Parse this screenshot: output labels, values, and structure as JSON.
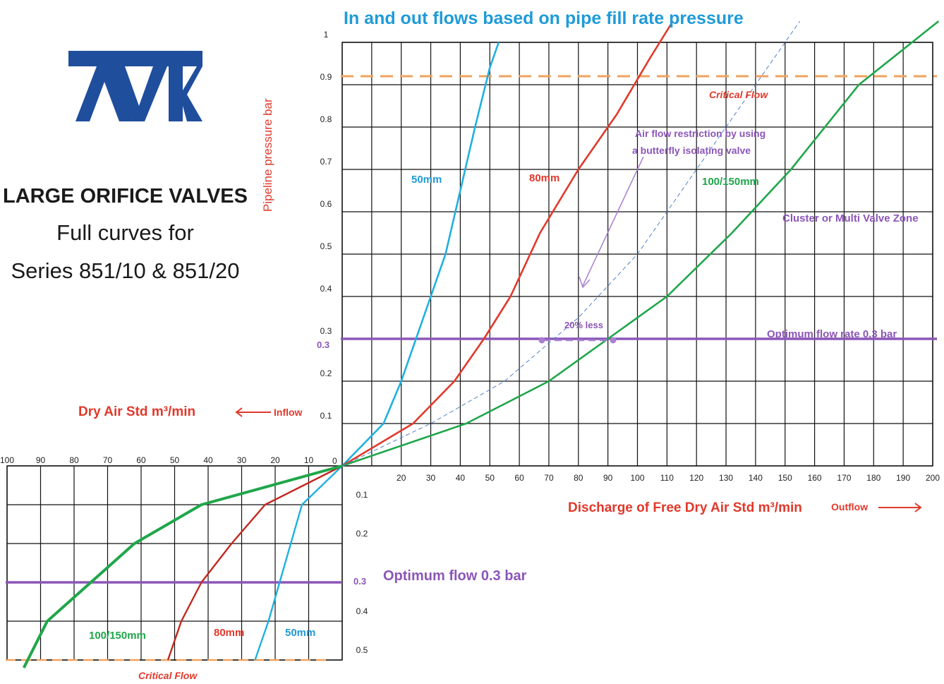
{
  "header": {
    "title": "In and out flows based on pipe fill rate pressure"
  },
  "brand": {
    "logo_text": "AVK",
    "color": "#1f4e9c"
  },
  "side": {
    "heading": "LARGE ORIFICE VALVES",
    "line1": "Full curves for",
    "line2": "Series 851/10 & 851/20"
  },
  "chart_data": [
    {
      "type": "line",
      "title": "In and out flows based on pipe fill rate pressure",
      "xlabel": "Discharge of Free Dry Air Std m³/min",
      "xlabel_arrow": "Outflow",
      "ylabel": "Pipeline pressure bar",
      "xlim": [
        0,
        200
      ],
      "ylim": [
        0,
        1.0
      ],
      "x_ticks": [
        20,
        30,
        40,
        50,
        60,
        70,
        80,
        90,
        100,
        110,
        120,
        130,
        140,
        150,
        160,
        170,
        180,
        190,
        200
      ],
      "y_ticks": [
        "0.1",
        "0.2",
        "0.3",
        "0.4",
        "0.5",
        "0.6",
        "0.7",
        "0.8",
        "0.9",
        "1"
      ],
      "origin_label": "0",
      "grid": true,
      "series": [
        {
          "name": "50mm",
          "color": "#1fb0e0",
          "x": [
            0,
            14,
            20,
            25,
            30,
            35,
            40,
            45,
            50,
            53
          ],
          "y": [
            0,
            0.1,
            0.2,
            0.3,
            0.4,
            0.5,
            0.65,
            0.8,
            0.94,
            1.0
          ]
        },
        {
          "name": "80mm",
          "color": "#e0392b",
          "x": [
            0,
            24,
            38,
            48,
            57,
            67,
            80,
            93,
            104,
            112
          ],
          "y": [
            0,
            0.1,
            0.2,
            0.3,
            0.4,
            0.55,
            0.7,
            0.83,
            0.96,
            1.05
          ]
        },
        {
          "name": "100/150mm",
          "color": "#1fa64a",
          "x": [
            0,
            42,
            70,
            90,
            110,
            132,
            152,
            175,
            193,
            202
          ],
          "y": [
            0,
            0.1,
            0.2,
            0.3,
            0.4,
            0.55,
            0.7,
            0.9,
            1.0,
            1.05
          ]
        },
        {
          "name": "",
          "color": "#4f82c9",
          "dashed": true,
          "x": [
            0,
            30,
            55,
            80,
            100,
            120,
            140,
            155
          ],
          "y": [
            0,
            0.1,
            0.2,
            0.35,
            0.5,
            0.7,
            0.9,
            1.05
          ]
        }
      ],
      "reference_lines": [
        {
          "label": "Critical Flow",
          "y": 0.92,
          "color": "#f0a35e",
          "dashed": true
        },
        {
          "label": "Optimum flow rate 0.3 bar",
          "y": 0.3,
          "color": "#8b56b8",
          "dashed": false
        }
      ],
      "annotations": {
        "series_labels": {
          "s50": "50mm",
          "s80": "80mm",
          "s100": "100/150mm"
        },
        "restriction_line1": "Air  flow restriction  by using",
        "restriction_line2": "a butterfly  isolating  valve",
        "cluster": "Cluster or Multi Valve Zone",
        "less": "20% less",
        "optimum_y_label": "0.3"
      }
    },
    {
      "type": "line",
      "xlabel": "Dry Air Std m³/min",
      "xlabel_arrow": "Inflow",
      "xlim": [
        0,
        100
      ],
      "ylim": [
        0,
        0.5
      ],
      "x_ticks": [
        10,
        20,
        30,
        40,
        50,
        60,
        70,
        80,
        90,
        100
      ],
      "y_ticks": [
        "0.1",
        "0.2",
        "0.3",
        "0.4",
        "0.5"
      ],
      "grid": true,
      "series": [
        {
          "name": "50mm",
          "color": "#1fb0e0",
          "x": [
            0,
            12,
            18,
            22,
            26
          ],
          "y": [
            0,
            0.1,
            0.28,
            0.4,
            0.5
          ]
        },
        {
          "name": "80mm",
          "color": "#c0291f",
          "x": [
            0,
            23,
            33,
            42,
            48,
            52
          ],
          "y": [
            0,
            0.1,
            0.2,
            0.3,
            0.4,
            0.5
          ]
        },
        {
          "name": "100/150mm",
          "color": "#1fa64a",
          "x": [
            0,
            42,
            62,
            75,
            88,
            95
          ],
          "y": [
            0,
            0.1,
            0.2,
            0.3,
            0.4,
            0.52
          ]
        }
      ],
      "reference_lines": [
        {
          "label": "Optimum flow 0.3 bar",
          "y": 0.3,
          "color": "#8b56b8",
          "dashed": false
        },
        {
          "label": "Critical Flow",
          "y": 0.5,
          "color": "#f0a35e",
          "dashed": true
        }
      ],
      "annotations": {
        "series_labels": {
          "s50": "50mm",
          "s80": "80mm",
          "s100": "100/150mm"
        },
        "optimum_y_label": "0.3"
      }
    }
  ]
}
